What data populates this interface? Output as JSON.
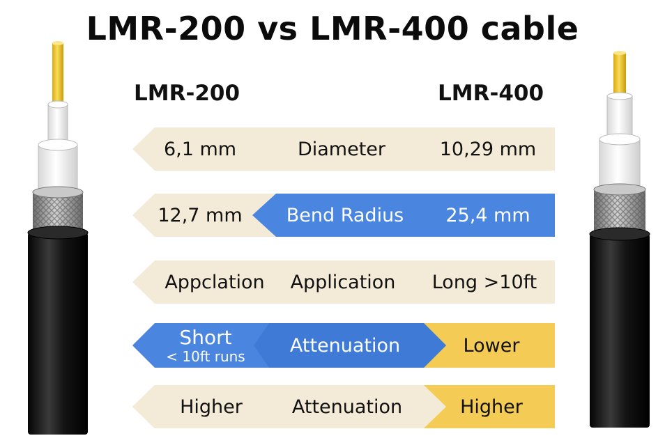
{
  "title": "LMR-200 vs LMR-400 cable",
  "columns": {
    "left": "LMR-200",
    "right": "LMR-400"
  },
  "colors": {
    "beige": "#F3EBD7",
    "blue": "#4A86E0",
    "yellow": "#F4CC55",
    "jacket": "#151515"
  },
  "rows": [
    {
      "left": "6,1 mm",
      "center": "Diameter",
      "right": "10,29 mm"
    },
    {
      "left": "12,7 mm",
      "center": "Bend Radius",
      "right": "25,4 mm"
    },
    {
      "left": "Appclation",
      "center": "Application",
      "right": "Long >10ft"
    },
    {
      "left": "Short",
      "left_sub": "< 10ft runs",
      "center": "Attenuation",
      "right": "Lower"
    },
    {
      "left": "Higher",
      "center": "Attenuation",
      "right": "Higher"
    }
  ]
}
